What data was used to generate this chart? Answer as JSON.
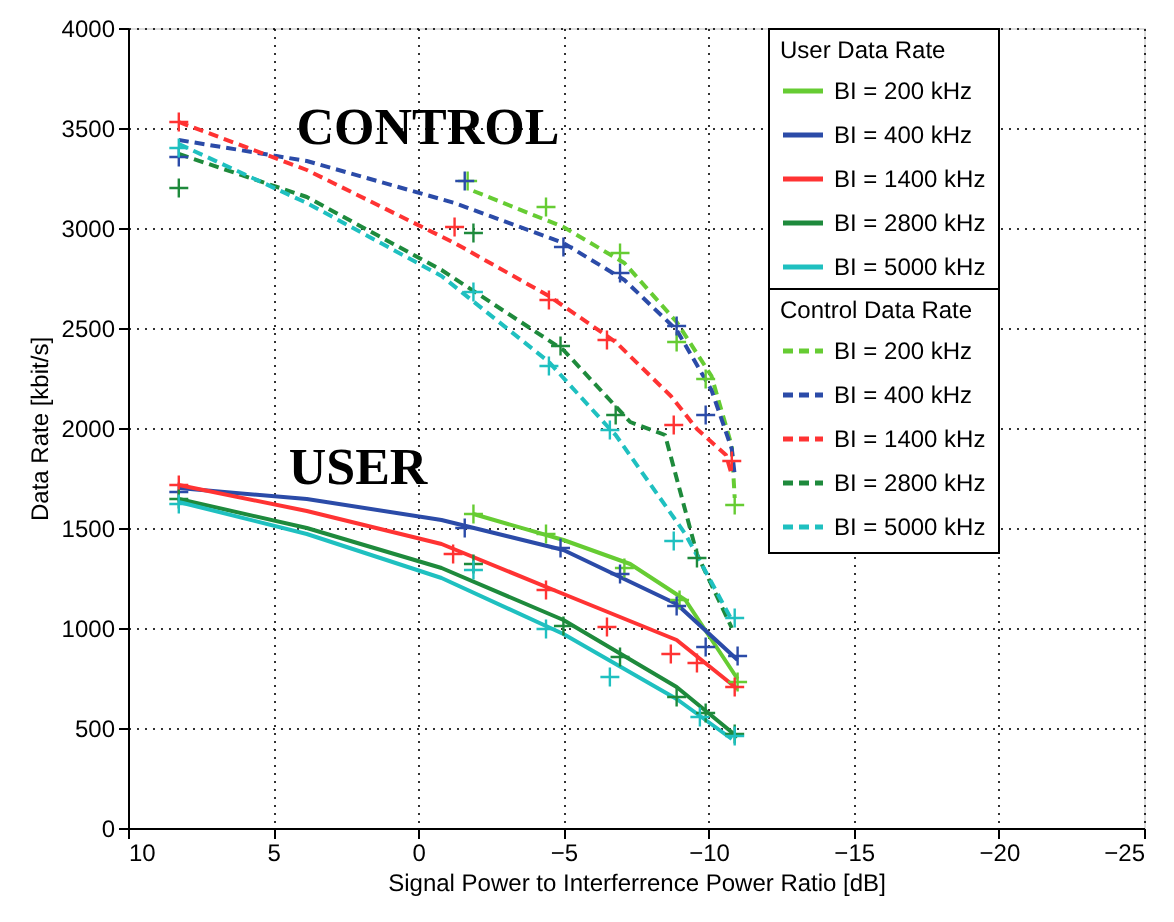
{
  "chart_data": {
    "type": "line",
    "xlabel": "Signal Power to Interferrence Power Ratio [dB]",
    "ylabel": "Data Rate [kbit/s]",
    "xlim": [
      10,
      -25
    ],
    "xticks": [
      10,
      5,
      0,
      -5,
      -10,
      -15,
      -20,
      -25
    ],
    "ylim": [
      0,
      4000
    ],
    "yticks": [
      0,
      500,
      1000,
      1500,
      2000,
      2500,
      3000,
      3500,
      4000
    ],
    "grid": true,
    "legend": "top right",
    "legend_title": [
      "User Data Rate",
      "Control Data Rate"
    ],
    "annotations": [
      "CONTROL",
      "USER"
    ],
    "series": [
      {
        "name": "BI = 200 kHz",
        "color": "#66cc33",
        "line_style": "solid",
        "x": [
          -1.9,
          -5,
          -7.3,
          -9.2,
          -11
        ],
        "values": [
          1570,
          1440,
          1320,
          1140,
          745
        ]
      },
      {
        "name": "BI = 400 kHz",
        "color": "#2b4ba8",
        "line_style": "solid",
        "x": [
          8.25,
          3.84,
          -0.8,
          -5,
          -8.9,
          -11
        ],
        "values": [
          1700,
          1645,
          1540,
          1390,
          1120,
          840
        ]
      },
      {
        "name": "BI = 1400 kHz",
        "color": "#ff3333",
        "line_style": "solid",
        "x": [
          8.25,
          3.84,
          -0.8,
          -5,
          -8.9,
          -11
        ],
        "values": [
          1715,
          1585,
          1420,
          1170,
          940,
          695
        ]
      },
      {
        "name": "BI = 2800 kHz",
        "color": "#1e8a3c",
        "line_style": "solid",
        "x": [
          8.25,
          3.84,
          -0.8,
          -5,
          -8.9,
          -11
        ],
        "values": [
          1645,
          1500,
          1300,
          1040,
          705,
          455
        ]
      },
      {
        "name": "BI = 5000 kHz",
        "color": "#1fc0c0",
        "line_style": "solid",
        "x": [
          8.25,
          3.84,
          -0.8,
          -5,
          -8.9,
          -10.8
        ],
        "values": [
          1630,
          1470,
          1250,
          970,
          645,
          445
        ]
      },
      {
        "name": "BI = 200 kHz",
        "color": "#66cc33",
        "line_style": "dashed",
        "x": [
          -1.9,
          -5,
          -7.1,
          -8.9,
          -10.1,
          -10.8,
          -10.9
        ],
        "values": [
          3185,
          3005,
          2825,
          2530,
          2260,
          1910,
          1650
        ]
      },
      {
        "name": "BI = 400 kHz",
        "color": "#2b4ba8",
        "line_style": "dashed",
        "x": [
          8.25,
          3.84,
          -1.25,
          -5,
          -7.1,
          -8.9,
          -10.1,
          -10.8,
          -10.9
        ],
        "values": [
          3440,
          3335,
          3125,
          2925,
          2740,
          2490,
          2190,
          1895,
          1765
        ]
      },
      {
        "name": "BI = 1400 kHz",
        "color": "#ff3333",
        "line_style": "dashed",
        "x": [
          8.25,
          3.84,
          -1.25,
          -4.5,
          -6.8,
          -8.7,
          -9.6,
          -10.6,
          -10.8
        ],
        "values": [
          3530,
          3290,
          2925,
          2660,
          2430,
          2160,
          1995,
          1865,
          1765
        ]
      },
      {
        "name": "BI = 2800 kHz",
        "color": "#1e8a3c",
        "line_style": "dashed",
        "x": [
          8.25,
          3.84,
          -0.8,
          -5,
          -7.3,
          -8.5,
          -9.6,
          -10.8
        ],
        "values": [
          3370,
          3155,
          2790,
          2390,
          2030,
          1965,
          1370,
          1000
        ]
      },
      {
        "name": "BI = 5000 kHz",
        "color": "#1fc0c0",
        "line_style": "dashed",
        "x": [
          8.25,
          3.84,
          -0.8,
          -4.5,
          -6.6,
          -6.8,
          -9.2,
          -10.8
        ],
        "values": [
          3420,
          3125,
          2760,
          2330,
          1995,
          1965,
          1470,
          1040
        ]
      },
      {
        "type": "scatter",
        "marker": "cross",
        "color": "#66cc33",
        "x": [
          -1.7,
          -4.4,
          -6.95,
          -8.9,
          -9.9,
          -10.9
        ],
        "values": [
          3235,
          3105,
          2875,
          2430,
          2245,
          1615
        ]
      },
      {
        "type": "scatter",
        "marker": "cross",
        "color": "#2b4ba8",
        "x": [
          8.25,
          -1.6,
          -5,
          -6.95,
          -8.9,
          -9.9
        ],
        "values": [
          3355,
          3235,
          2905,
          2775,
          2510,
          2065
        ]
      },
      {
        "type": "scatter",
        "marker": "cross",
        "color": "#ff3333",
        "x": [
          8.25,
          -1.25,
          -4.5,
          -6.5,
          -8.8,
          -10.8
        ],
        "values": [
          3530,
          3005,
          2640,
          2440,
          2015,
          1835
        ]
      },
      {
        "type": "scatter",
        "marker": "cross",
        "color": "#1e8a3c",
        "x": [
          8.25,
          -1.9,
          -4.9,
          -6.8,
          -9.6
        ],
        "values": [
          3200,
          2975,
          2410,
          2065,
          1350
        ]
      },
      {
        "type": "scatter",
        "marker": "cross",
        "color": "#1fc0c0",
        "x": [
          8.25,
          -1.9,
          -4.5,
          -6.6,
          -8.8,
          -10.9
        ],
        "values": [
          3400,
          2680,
          2310,
          1990,
          1435,
          1050
        ]
      },
      {
        "type": "scatter",
        "marker": "cross",
        "color": "#66cc33",
        "x": [
          -1.9,
          -4.4,
          -7.1,
          -9,
          -11
        ],
        "values": [
          1570,
          1470,
          1300,
          1140,
          730
        ]
      },
      {
        "type": "scatter",
        "marker": "cross",
        "color": "#2b4ba8",
        "x": [
          8.25,
          -1.6,
          -4.9,
          -6.95,
          -8.9,
          -9.9,
          -11
        ],
        "values": [
          1680,
          1500,
          1400,
          1270,
          1110,
          905,
          860
        ]
      },
      {
        "type": "scatter",
        "marker": "cross",
        "color": "#ff3333",
        "x": [
          8.25,
          -1.2,
          -4.4,
          -6.5,
          -8.7,
          -9.6,
          -10.9
        ],
        "values": [
          1715,
          1370,
          1190,
          1005,
          870,
          825,
          705
        ]
      },
      {
        "type": "scatter",
        "marker": "cross",
        "color": "#1e8a3c",
        "x": [
          8.25,
          -1.9,
          -5,
          -6.95,
          -8.9,
          -9.9,
          -10.9
        ],
        "values": [
          1645,
          1320,
          1010,
          855,
          655,
          575,
          470
        ]
      },
      {
        "type": "scatter",
        "marker": "cross",
        "color": "#1fc0c0",
        "x": [
          8.25,
          -1.9,
          -4.4,
          -6.6,
          -9.7,
          -10.9
        ],
        "values": [
          1620,
          1290,
          995,
          755,
          555,
          460
        ]
      }
    ]
  }
}
